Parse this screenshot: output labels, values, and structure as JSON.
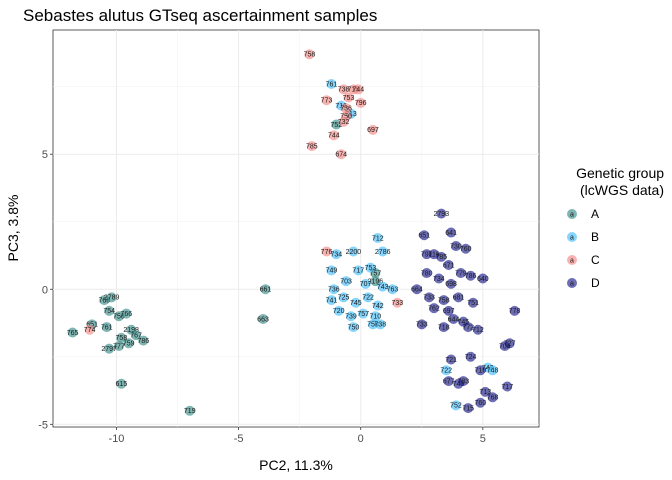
{
  "chart_data": {
    "type": "scatter",
    "title": "Sebastes alutus GTseq ascertainment samples",
    "xlabel": "PC2, 11.3%",
    "ylabel": "PC3, 3.8%",
    "xlim": [
      -12.6,
      7.3
    ],
    "ylim": [
      -5.1,
      9.6
    ],
    "x_ticks": [
      -10,
      -5,
      0,
      5
    ],
    "y_ticks": [
      -5,
      0,
      5
    ],
    "x_tick_labels": [
      "-10",
      "-5",
      "0",
      "5"
    ],
    "y_tick_labels": [
      "-5",
      "0",
      "5"
    ],
    "grid": true,
    "legend_position": "right",
    "legend_title": "Genetic group\n(lcWGS data)",
    "series": [
      {
        "name": "A",
        "color": "#3A8F8A",
        "points": [
          {
            "x": -11.8,
            "y": -1.6,
            "label": "765"
          },
          {
            "x": -11.0,
            "y": -1.3,
            "label": "651"
          },
          {
            "x": -10.5,
            "y": -0.4,
            "label": "768"
          },
          {
            "x": -10.2,
            "y": -0.3,
            "label": "2789"
          },
          {
            "x": -10.3,
            "y": -0.8,
            "label": "754"
          },
          {
            "x": -10.4,
            "y": -1.4,
            "label": "761"
          },
          {
            "x": -9.9,
            "y": -1.0,
            "label": "756"
          },
          {
            "x": -9.6,
            "y": -0.9,
            "label": "766"
          },
          {
            "x": -9.4,
            "y": -1.5,
            "label": "2198"
          },
          {
            "x": -9.2,
            "y": -1.7,
            "label": "767"
          },
          {
            "x": -9.5,
            "y": -2.0,
            "label": "759"
          },
          {
            "x": -9.9,
            "y": -2.1,
            "label": "777"
          },
          {
            "x": -10.3,
            "y": -2.2,
            "label": "2797"
          },
          {
            "x": -9.8,
            "y": -1.8,
            "label": "758"
          },
          {
            "x": -8.9,
            "y": -1.9,
            "label": "786"
          },
          {
            "x": -9.8,
            "y": -3.5,
            "label": "615"
          },
          {
            "x": -7.0,
            "y": -4.5,
            "label": "719"
          },
          {
            "x": -3.9,
            "y": 0.0,
            "label": "661"
          },
          {
            "x": -4.0,
            "y": -1.1,
            "label": "663"
          },
          {
            "x": -1.0,
            "y": 6.1,
            "label": "752"
          },
          {
            "x": 0.6,
            "y": 0.6,
            "label": "757"
          },
          {
            "x": 0.6,
            "y": 0.3,
            "label": "2196"
          }
        ]
      },
      {
        "name": "B",
        "color": "#45BFFA",
        "points": [
          {
            "x": -1.2,
            "y": 7.6,
            "label": "761"
          },
          {
            "x": -0.8,
            "y": 6.8,
            "label": "716"
          },
          {
            "x": -0.4,
            "y": 6.5,
            "label": "713"
          },
          {
            "x": 0.7,
            "y": 1.9,
            "label": "712"
          },
          {
            "x": -0.3,
            "y": 1.4,
            "label": "2200"
          },
          {
            "x": 0.9,
            "y": 1.4,
            "label": "2786"
          },
          {
            "x": -1.0,
            "y": 1.3,
            "label": "734"
          },
          {
            "x": -1.2,
            "y": 0.7,
            "label": "749"
          },
          {
            "x": -0.1,
            "y": 0.7,
            "label": "717"
          },
          {
            "x": 0.4,
            "y": 0.8,
            "label": "753"
          },
          {
            "x": -0.6,
            "y": 0.3,
            "label": "703"
          },
          {
            "x": 0.2,
            "y": 0.2,
            "label": "707"
          },
          {
            "x": -1.1,
            "y": 0.0,
            "label": "736"
          },
          {
            "x": 0.9,
            "y": 0.1,
            "label": "743"
          },
          {
            "x": 1.3,
            "y": 0.0,
            "label": "763"
          },
          {
            "x": -1.2,
            "y": -0.4,
            "label": "741"
          },
          {
            "x": -0.7,
            "y": -0.3,
            "label": "725"
          },
          {
            "x": -0.2,
            "y": -0.5,
            "label": "745"
          },
          {
            "x": 0.3,
            "y": -0.3,
            "label": "722"
          },
          {
            "x": 0.7,
            "y": -0.6,
            "label": "742"
          },
          {
            "x": -0.9,
            "y": -0.8,
            "label": "720"
          },
          {
            "x": -0.4,
            "y": -1.0,
            "label": "739"
          },
          {
            "x": 0.1,
            "y": -0.9,
            "label": "757"
          },
          {
            "x": 0.6,
            "y": -1.0,
            "label": "710"
          },
          {
            "x": -0.3,
            "y": -1.4,
            "label": "750"
          },
          {
            "x": 0.5,
            "y": -1.3,
            "label": "750"
          },
          {
            "x": 0.8,
            "y": -1.3,
            "label": "738"
          },
          {
            "x": 3.5,
            "y": -3.0,
            "label": "722"
          },
          {
            "x": 3.9,
            "y": -4.3,
            "label": "752"
          },
          {
            "x": 5.2,
            "y": -2.9,
            "label": "747"
          },
          {
            "x": 5.4,
            "y": -3.0,
            "label": "748"
          }
        ]
      },
      {
        "name": "C",
        "color": "#F58B86",
        "points": [
          {
            "x": -2.1,
            "y": 8.7,
            "label": "758"
          },
          {
            "x": -0.7,
            "y": 7.4,
            "label": "738"
          },
          {
            "x": -0.3,
            "y": 7.4,
            "label": "715"
          },
          {
            "x": -0.1,
            "y": 7.4,
            "label": "744"
          },
          {
            "x": -0.5,
            "y": 7.1,
            "label": "753"
          },
          {
            "x": -1.4,
            "y": 7.0,
            "label": "773"
          },
          {
            "x": 0.0,
            "y": 6.9,
            "label": "796"
          },
          {
            "x": -0.6,
            "y": 6.7,
            "label": "736"
          },
          {
            "x": -0.6,
            "y": 6.4,
            "label": "750"
          },
          {
            "x": -0.7,
            "y": 6.2,
            "label": "732"
          },
          {
            "x": -1.1,
            "y": 5.7,
            "label": "744"
          },
          {
            "x": 0.5,
            "y": 5.9,
            "label": "697"
          },
          {
            "x": -2.0,
            "y": 5.3,
            "label": "785"
          },
          {
            "x": -0.8,
            "y": 5.0,
            "label": "674"
          },
          {
            "x": -11.1,
            "y": -1.5,
            "label": "774"
          },
          {
            "x": -1.4,
            "y": 1.4,
            "label": "776"
          },
          {
            "x": 1.5,
            "y": -0.5,
            "label": "733"
          }
        ]
      },
      {
        "name": "D",
        "color": "#1D1F8C",
        "points": [
          {
            "x": 3.3,
            "y": 2.8,
            "label": "2793"
          },
          {
            "x": 2.6,
            "y": 2.0,
            "label": "651"
          },
          {
            "x": 3.7,
            "y": 2.1,
            "label": "641"
          },
          {
            "x": 2.7,
            "y": 1.3,
            "label": "791"
          },
          {
            "x": 3.0,
            "y": 1.3,
            "label": "716"
          },
          {
            "x": 3.3,
            "y": 1.2,
            "label": "785"
          },
          {
            "x": 3.9,
            "y": 1.6,
            "label": "730"
          },
          {
            "x": 4.3,
            "y": 1.5,
            "label": "760"
          },
          {
            "x": 3.6,
            "y": 0.9,
            "label": "671"
          },
          {
            "x": 2.7,
            "y": 0.6,
            "label": "780"
          },
          {
            "x": 3.2,
            "y": 0.4,
            "label": "734"
          },
          {
            "x": 4.1,
            "y": 0.6,
            "label": "779"
          },
          {
            "x": 4.5,
            "y": 0.5,
            "label": "786"
          },
          {
            "x": 5.0,
            "y": 0.4,
            "label": "640"
          },
          {
            "x": 3.7,
            "y": 0.2,
            "label": "698"
          },
          {
            "x": 2.3,
            "y": 0.0,
            "label": "664"
          },
          {
            "x": 2.8,
            "y": -0.3,
            "label": "733"
          },
          {
            "x": 3.4,
            "y": -0.4,
            "label": "758"
          },
          {
            "x": 4.0,
            "y": -0.3,
            "label": "681"
          },
          {
            "x": 4.6,
            "y": -0.5,
            "label": "751"
          },
          {
            "x": 3.0,
            "y": -0.7,
            "label": "762"
          },
          {
            "x": 3.6,
            "y": -0.8,
            "label": "697"
          },
          {
            "x": 3.8,
            "y": -1.1,
            "label": "644"
          },
          {
            "x": 4.2,
            "y": -1.2,
            "label": "745"
          },
          {
            "x": 2.5,
            "y": -1.3,
            "label": "733"
          },
          {
            "x": 3.4,
            "y": -1.4,
            "label": "718"
          },
          {
            "x": 4.4,
            "y": -1.4,
            "label": "772"
          },
          {
            "x": 4.8,
            "y": -1.5,
            "label": "712"
          },
          {
            "x": 6.3,
            "y": -0.8,
            "label": "778"
          },
          {
            "x": 6.1,
            "y": -2.0,
            "label": "727"
          },
          {
            "x": 5.9,
            "y": -2.1,
            "label": "704"
          },
          {
            "x": 3.7,
            "y": -2.6,
            "label": "721"
          },
          {
            "x": 4.5,
            "y": -2.5,
            "label": "724"
          },
          {
            "x": 4.9,
            "y": -3.0,
            "label": "710"
          },
          {
            "x": 3.6,
            "y": -3.4,
            "label": "677"
          },
          {
            "x": 4.0,
            "y": -3.5,
            "label": "743"
          },
          {
            "x": 4.2,
            "y": -3.4,
            "label": "783"
          },
          {
            "x": 5.1,
            "y": -3.8,
            "label": "713"
          },
          {
            "x": 5.4,
            "y": -4.0,
            "label": "768"
          },
          {
            "x": 4.9,
            "y": -4.2,
            "label": "760"
          },
          {
            "x": 4.4,
            "y": -4.4,
            "label": "715"
          },
          {
            "x": 6.0,
            "y": -3.6,
            "label": "717"
          }
        ]
      }
    ]
  }
}
